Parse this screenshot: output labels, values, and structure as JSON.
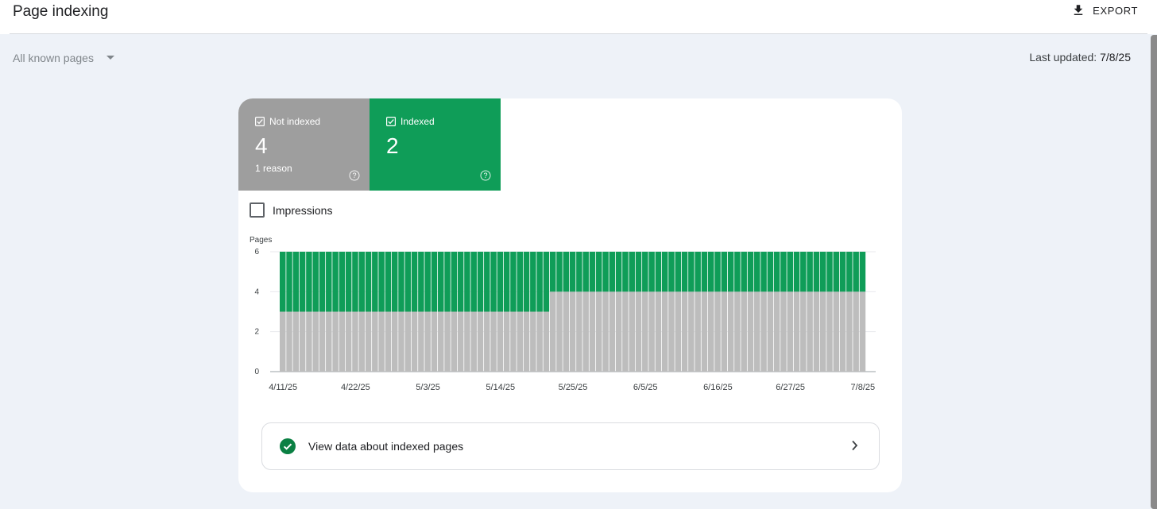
{
  "header": {
    "title": "Page indexing",
    "export_label": "EXPORT"
  },
  "filter": {
    "selected": "All known pages"
  },
  "last_updated": {
    "label": "Last updated:",
    "value": "7/8/25"
  },
  "tiles": [
    {
      "label": "Not indexed",
      "count": "4",
      "sub": "1 reason",
      "color": "#9e9e9e"
    },
    {
      "label": "Indexed",
      "count": "2",
      "sub": "",
      "color": "#0f9d58"
    }
  ],
  "impressions": {
    "label": "Impressions",
    "checked": false
  },
  "chart_data": {
    "type": "bar",
    "stacked": true,
    "ylabel": "Pages",
    "ylim": [
      0,
      6
    ],
    "yticks": [
      0,
      2,
      4,
      6
    ],
    "xtick_labels": [
      "4/11/25",
      "4/22/25",
      "5/3/25",
      "5/14/25",
      "5/25/25",
      "6/5/25",
      "6/16/25",
      "6/27/25",
      "7/8/25"
    ],
    "date_range": [
      "4/11/25",
      "7/8/25"
    ],
    "grid": true,
    "series": [
      {
        "name": "Not indexed",
        "color": "#bdbdbd",
        "segments": [
          {
            "from": "4/11/25",
            "to": "5/21/25",
            "value": 3
          },
          {
            "from": "5/22/25",
            "to": "7/8/25",
            "value": 4
          }
        ]
      },
      {
        "name": "Indexed",
        "color": "#0f9d58",
        "segments": [
          {
            "from": "4/11/25",
            "to": "5/21/25",
            "value": 3
          },
          {
            "from": "5/22/25",
            "to": "7/8/25",
            "value": 2
          }
        ]
      }
    ]
  },
  "view_data": {
    "label": "View data about indexed pages"
  }
}
